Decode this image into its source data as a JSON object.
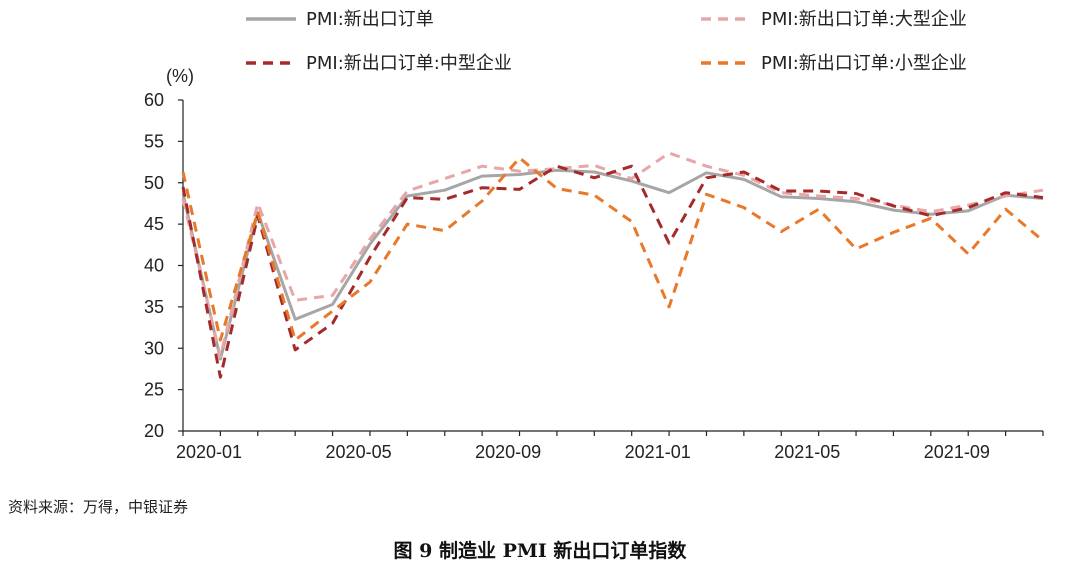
{
  "chart_data": {
    "type": "line",
    "ylabel": "(%)",
    "ylim": [
      20,
      60
    ],
    "yticks": [
      20,
      25,
      30,
      35,
      40,
      45,
      50,
      55,
      60
    ],
    "x_tick_labels": [
      "2020-01",
      "2020-05",
      "2020-09",
      "2021-01",
      "2021-05",
      "2021-09"
    ],
    "x_tick_positions": [
      "2020-01",
      "2020-05",
      "2020-09",
      "2021-01",
      "2021-05",
      "2021-09"
    ],
    "x": [
      "2020-01",
      "2020-02",
      "2020-03",
      "2020-04",
      "2020-05",
      "2020-06",
      "2020-07",
      "2020-08",
      "2020-09",
      "2020-10",
      "2020-11",
      "2020-12",
      "2021-01",
      "2021-02",
      "2021-03",
      "2021-04",
      "2021-05",
      "2021-06",
      "2021-07",
      "2021-08",
      "2021-09",
      "2021-10",
      "2021-11",
      "2021-12"
    ],
    "legend_placement": "top",
    "grid": false,
    "series": [
      {
        "name": "PMI:新出口订单",
        "color": "#a6a6a6",
        "dash": "solid",
        "values": [
          48.7,
          28.7,
          46.4,
          33.5,
          35.3,
          42.6,
          48.4,
          49.1,
          50.8,
          51.0,
          51.5,
          51.3,
          50.2,
          48.8,
          51.2,
          50.4,
          48.3,
          48.1,
          47.7,
          46.7,
          46.2,
          46.6,
          48.5,
          48.1
        ]
      },
      {
        "name": "PMI:新出口订单:大型企业",
        "color": "#e8a6a6",
        "dash": "dashed",
        "values": [
          48.0,
          29.0,
          47.5,
          35.8,
          36.4,
          43.2,
          49.0,
          50.5,
          52.0,
          51.4,
          51.7,
          52.1,
          50.5,
          53.6,
          52.0,
          50.9,
          48.8,
          48.4,
          48.1,
          47.3,
          46.5,
          47.3,
          48.4,
          49.1
        ]
      },
      {
        "name": "PMI:新出口订单:中型企业",
        "color": "#a52a2a",
        "dash": "dashed",
        "values": [
          49.5,
          26.5,
          46.0,
          29.8,
          33.0,
          41.0,
          48.2,
          48.0,
          49.4,
          49.2,
          52.0,
          50.6,
          52.0,
          42.7,
          50.6,
          51.3,
          49.0,
          49.0,
          48.7,
          47.2,
          46.0,
          47.0,
          48.8,
          48.2
        ]
      },
      {
        "name": "PMI:新出口订单:小型企业",
        "color": "#e8782a",
        "dash": "dashed",
        "values": [
          51.3,
          31.0,
          46.5,
          31.0,
          34.5,
          38.0,
          45.0,
          44.2,
          47.8,
          53.0,
          49.3,
          48.5,
          45.3,
          35.0,
          48.6,
          47.0,
          44.1,
          46.8,
          42.0,
          44.0,
          45.7,
          41.4,
          46.8,
          43.0
        ]
      }
    ]
  },
  "footer": {
    "source": "资料来源：万得，中银证券",
    "caption": "图 9    制造业 PMI 新出口订单指数"
  }
}
